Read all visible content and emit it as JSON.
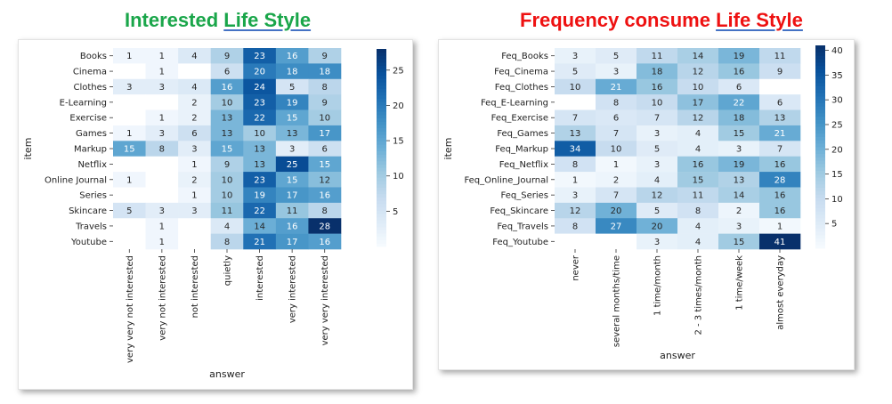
{
  "titles": {
    "left": {
      "prefix": "Interested ",
      "underlined": "Life Style"
    },
    "right": {
      "prefix": "Frequency consume ",
      "underlined": "Life Style"
    }
  },
  "colors": {
    "title_left": "#1aa64a",
    "title_right": "#ee1111",
    "colormap": "Blues"
  },
  "chart_data": [
    {
      "type": "heatmap",
      "xlabel": "answer",
      "ylabel": "item",
      "rows": [
        "Books",
        "Cinema",
        "Clothes",
        "E-Learning",
        "Exercise",
        "Games",
        "Markup",
        "Netflix",
        "Online Journal",
        "Series",
        "Skincare",
        "Travels",
        "Youtube"
      ],
      "columns": [
        "very very not interested",
        "very not interested",
        "not interested",
        "quietly",
        "interested",
        "very interested",
        "very very interested"
      ],
      "values": [
        [
          1,
          1,
          4,
          9,
          23,
          16,
          9
        ],
        [
          null,
          1,
          null,
          6,
          20,
          18,
          18
        ],
        [
          3,
          3,
          4,
          16,
          24,
          5,
          8
        ],
        [
          null,
          null,
          2,
          10,
          23,
          19,
          9
        ],
        [
          null,
          1,
          2,
          13,
          22,
          15,
          10
        ],
        [
          1,
          3,
          6,
          13,
          10,
          13,
          17
        ],
        [
          15,
          8,
          3,
          15,
          13,
          3,
          6
        ],
        [
          null,
          null,
          1,
          9,
          13,
          25,
          15
        ],
        [
          1,
          null,
          2,
          10,
          23,
          15,
          12
        ],
        [
          null,
          null,
          1,
          10,
          19,
          17,
          16
        ],
        [
          5,
          3,
          3,
          11,
          22,
          11,
          8
        ],
        [
          null,
          1,
          null,
          4,
          14,
          16,
          28
        ],
        [
          null,
          1,
          null,
          8,
          21,
          17,
          16
        ]
      ],
      "vmin": 0,
      "vmax": 28,
      "colorbar_ticks": [
        5,
        10,
        15,
        20,
        25
      ]
    },
    {
      "type": "heatmap",
      "xlabel": "answer",
      "ylabel": "item",
      "rows": [
        "Feq_Books",
        "Feq_Cinema",
        "Feq_Clothes",
        "Feq_E-Learning",
        "Feq_Exercise",
        "Feq_Games",
        "Feq_Markup",
        "Feq_Netflix",
        "Feq_Online_Journal",
        "Feq_Series",
        "Feq_Skincare",
        "Feq_Travels",
        "Feq_Youtube"
      ],
      "columns": [
        "never",
        "several months/time",
        "1 time/month",
        "2 - 3 times/month",
        "1 time/week",
        "almost everyday"
      ],
      "values": [
        [
          3,
          5,
          11,
          14,
          19,
          11
        ],
        [
          5,
          3,
          18,
          12,
          16,
          9
        ],
        [
          10,
          21,
          16,
          10,
          6,
          null
        ],
        [
          null,
          8,
          10,
          17,
          22,
          6
        ],
        [
          7,
          6,
          7,
          12,
          18,
          13
        ],
        [
          13,
          7,
          3,
          4,
          15,
          21
        ],
        [
          34,
          10,
          5,
          4,
          3,
          7
        ],
        [
          8,
          1,
          3,
          16,
          19,
          16
        ],
        [
          1,
          2,
          4,
          15,
          13,
          28
        ],
        [
          3,
          7,
          12,
          11,
          14,
          16
        ],
        [
          12,
          20,
          5,
          8,
          2,
          16
        ],
        [
          8,
          27,
          20,
          4,
          3,
          1
        ],
        [
          null,
          null,
          3,
          4,
          15,
          41
        ]
      ],
      "vmin": 0,
      "vmax": 41,
      "colorbar_ticks": [
        5,
        10,
        15,
        20,
        25,
        30,
        35,
        40
      ]
    }
  ]
}
